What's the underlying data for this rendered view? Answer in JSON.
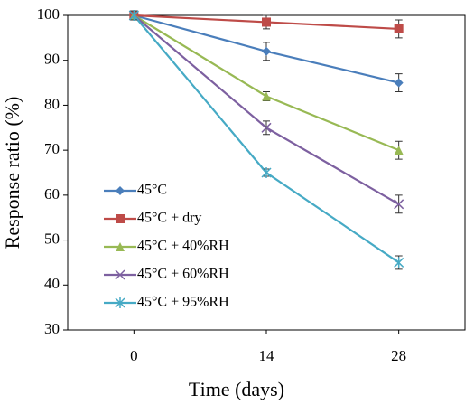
{
  "chart_data": {
    "type": "line",
    "x_label": "Time (days)",
    "y_label": "Response ratio (%)",
    "x": [
      0,
      14,
      28
    ],
    "xlim": [
      -7,
      35
    ],
    "xticks": [
      0,
      14,
      28
    ],
    "ylim": [
      30,
      100
    ],
    "yticks": [
      30,
      40,
      50,
      60,
      70,
      80,
      90,
      100
    ],
    "grid": false,
    "legend": "lower left",
    "series": [
      {
        "name": "45°C",
        "color": "#4a7ebb",
        "marker": "diamond",
        "values": [
          100,
          92,
          85
        ],
        "errors": [
          1,
          2,
          2
        ]
      },
      {
        "name": "45°C + dry",
        "color": "#be4b48",
        "marker": "square",
        "values": [
          100,
          98.5,
          97
        ],
        "errors": [
          1,
          1.5,
          2
        ]
      },
      {
        "name": "45°C + 40%RH",
        "color": "#98b954",
        "marker": "triangle",
        "values": [
          100,
          82,
          70
        ],
        "errors": [
          1,
          1,
          2
        ]
      },
      {
        "name": "45°C + 60%RH",
        "color": "#7d60a0",
        "marker": "x",
        "values": [
          100,
          75,
          58
        ],
        "errors": [
          1,
          1.5,
          2
        ]
      },
      {
        "name": "45°C + 95%RH",
        "color": "#46aac5",
        "marker": "star",
        "values": [
          100,
          65,
          45
        ],
        "errors": [
          1,
          0.8,
          1.5
        ]
      }
    ]
  }
}
